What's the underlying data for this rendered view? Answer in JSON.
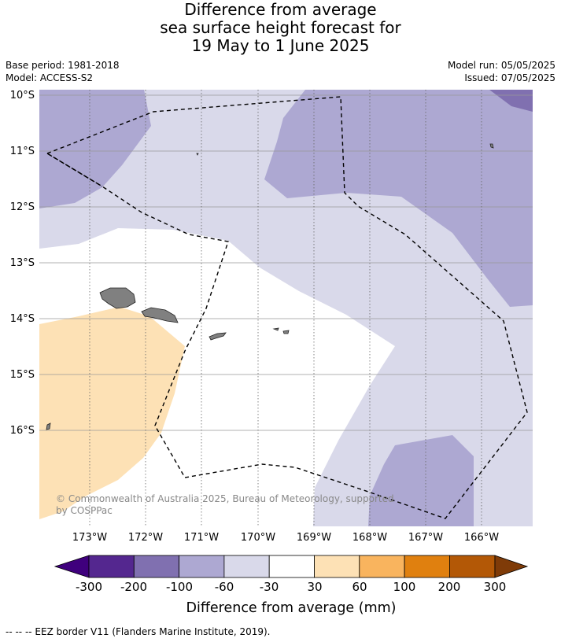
{
  "title": {
    "line1": "Difference from average",
    "line2": "sea surface height forecast for",
    "line3": "19 May to 1 June 2025"
  },
  "meta_left": {
    "base_period": "Base period: 1981-2018",
    "model": "Model: ACCESS-S2"
  },
  "meta_right": {
    "model_run": "Model run: 05/05/2025",
    "issued": "Issued: 07/05/2025"
  },
  "map": {
    "latitude_labels": [
      "10°S",
      "11°S",
      "12°S",
      "13°S",
      "14°S",
      "15°S",
      "16°S"
    ],
    "longitude_labels": [
      "173°W",
      "172°W",
      "171°W",
      "170°W",
      "169°W",
      "168°W",
      "167°W",
      "166°W"
    ],
    "latitude_values": [
      -10,
      -11,
      -12,
      -13,
      -14,
      -15,
      -16
    ],
    "longitude_values": [
      -173,
      -172,
      -171,
      -170,
      -169,
      -168,
      -167,
      -166
    ],
    "copyright_line1": "© Commonwealth of Australia 2025, Bureau of Meteorology, supported",
    "copyright_line2": "by COSPPac"
  },
  "colorbar": {
    "title": "Difference from average (mm)",
    "tick_labels": [
      "-300",
      "-200",
      "-100",
      "-60",
      "-30",
      "30",
      "60",
      "100",
      "200",
      "300"
    ],
    "colors": [
      "#3f007d",
      "#54278f",
      "#8070b0",
      "#ada8d2",
      "#d9d9ea",
      "#ffffff",
      "#fde1b5",
      "#f9b45e",
      "#e0800f",
      "#b35806",
      "#7f3b08"
    ]
  },
  "footer": {
    "legend_text": "--  --  -- EEZ border V11 (Flanders Marine Institute, 2019)."
  }
}
